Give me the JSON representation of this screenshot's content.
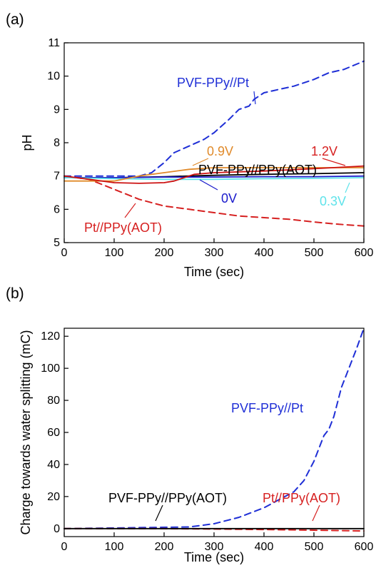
{
  "chart_data": [
    {
      "panel_label": "(a)",
      "type": "line",
      "xlabel": "Time (sec)",
      "ylabel": "pH",
      "xlim": [
        0,
        600
      ],
      "ylim": [
        5,
        11
      ],
      "x_ticks": [
        "0",
        "100",
        "200",
        "300",
        "400",
        "500",
        "600"
      ],
      "y_ticks": [
        "5",
        "6",
        "7",
        "8",
        "9",
        "10",
        "11"
      ],
      "grid": false,
      "series": [
        {
          "name": "PVF-PPy//Pt",
          "color": "#1f2fd6",
          "dash": true,
          "x": [
            0,
            50,
            100,
            150,
            175,
            200,
            220,
            250,
            280,
            300,
            330,
            350,
            370,
            380,
            400,
            430,
            460,
            500,
            530,
            560,
            600
          ],
          "y": [
            7.0,
            7.0,
            7.0,
            7.0,
            7.1,
            7.4,
            7.7,
            7.9,
            8.1,
            8.3,
            8.7,
            9.0,
            9.1,
            9.3,
            9.5,
            9.6,
            9.7,
            9.9,
            10.1,
            10.2,
            10.45
          ]
        },
        {
          "name": "Pt//PPy(AOT)",
          "color": "#d62020",
          "dash": true,
          "x": [
            0,
            50,
            100,
            150,
            200,
            250,
            300,
            350,
            400,
            450,
            500,
            550,
            600
          ],
          "y": [
            7.0,
            6.9,
            6.6,
            6.3,
            6.1,
            6.0,
            5.9,
            5.8,
            5.75,
            5.7,
            5.62,
            5.55,
            5.5
          ]
        },
        {
          "name": "PVF-PPy//PPy(AOT)",
          "color": "#000000",
          "dash": false,
          "x": [
            0,
            100,
            200,
            250,
            300,
            400,
            500,
            600
          ],
          "y": [
            6.95,
            6.95,
            6.98,
            7.0,
            7.02,
            7.05,
            7.07,
            7.1
          ]
        },
        {
          "name": "0V",
          "color": "#1a1acc",
          "dash": false,
          "x": [
            0,
            100,
            200,
            300,
            400,
            500,
            600
          ],
          "y": [
            6.95,
            6.95,
            6.97,
            6.97,
            6.98,
            6.98,
            7.0
          ]
        },
        {
          "name": "0.3V",
          "color": "#5fe3ea",
          "dash": false,
          "x": [
            0,
            100,
            200,
            300,
            400,
            500,
            600
          ],
          "y": [
            6.95,
            6.92,
            6.9,
            6.9,
            6.92,
            6.93,
            6.95
          ]
        },
        {
          "name": "0.9V",
          "color": "#e08a2a",
          "dash": false,
          "x": [
            0,
            100,
            150,
            200,
            250,
            300,
            400,
            500,
            600
          ],
          "y": [
            6.85,
            6.85,
            7.0,
            7.1,
            7.2,
            7.25,
            7.25,
            7.25,
            7.25
          ]
        },
        {
          "name": "1.2V",
          "color": "#cc1111",
          "dash": false,
          "x": [
            0,
            50,
            100,
            150,
            200,
            220,
            240,
            260,
            300,
            400,
            500,
            600
          ],
          "y": [
            7.0,
            6.9,
            6.8,
            6.78,
            6.8,
            6.85,
            6.95,
            7.05,
            7.1,
            7.15,
            7.22,
            7.3
          ]
        }
      ],
      "annotations": [
        "PVF-PPy//Pt",
        "0.9V",
        "1.2V",
        "PVF-PPy//PPy(AOT)",
        "0V",
        "0.3V",
        "Pt//PPy(AOT)"
      ]
    },
    {
      "panel_label": "(b)",
      "type": "line",
      "xlabel": "Time (sec)",
      "ylabel": "Charge towards water splitting (mC)",
      "xlim": [
        0,
        600
      ],
      "ylim": [
        -5,
        125
      ],
      "x_ticks": [
        "0",
        "100",
        "200",
        "300",
        "400",
        "500",
        "600"
      ],
      "y_ticks": [
        "0",
        "20",
        "40",
        "60",
        "80",
        "100",
        "120"
      ],
      "grid": false,
      "series": [
        {
          "name": "PVF-PPy//Pt",
          "color": "#1f2fd6",
          "dash": true,
          "x": [
            0,
            250,
            300,
            350,
            400,
            430,
            460,
            480,
            500,
            520,
            530,
            540,
            555,
            570,
            585,
            600
          ],
          "y": [
            0,
            1,
            3,
            7,
            13,
            18,
            23,
            30,
            42,
            58,
            62,
            70,
            88,
            100,
            112,
            125
          ]
        },
        {
          "name": "Pt//PPy(AOT)",
          "color": "#d62020",
          "dash": true,
          "x": [
            0,
            100,
            200,
            300,
            400,
            500,
            600
          ],
          "y": [
            0,
            0,
            0,
            -0.3,
            -0.6,
            -1.0,
            -1.5
          ]
        },
        {
          "name": "PVF-PPy//PPy(AOT)",
          "color": "#000000",
          "dash": false,
          "x": [
            0,
            600
          ],
          "y": [
            0,
            0
          ]
        }
      ],
      "annotations": [
        "PVF-PPy//Pt",
        "PVF-PPy//PPy(AOT)",
        "Pt//PPy(AOT)"
      ]
    }
  ]
}
